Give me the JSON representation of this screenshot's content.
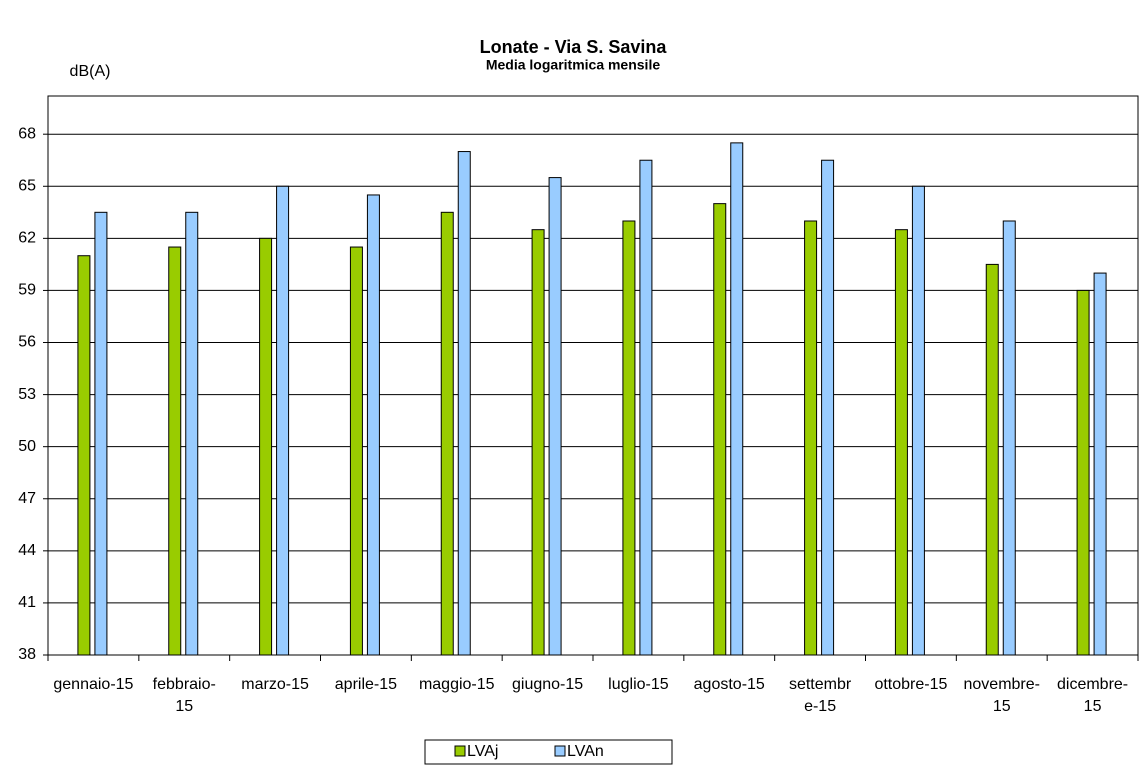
{
  "chart_data": {
    "type": "bar",
    "title": "Lonate - Via S. Savina",
    "subtitle": "Media logaritmica mensile",
    "y_label": "dB(A)",
    "categories": [
      "gennaio-15",
      "febbraio-15",
      "marzo-15",
      "aprile-15",
      "maggio-15",
      "giugno-15",
      "luglio-15",
      "agosto-15",
      "settembre-15",
      "ottobre-15",
      "novembre-15",
      "dicembre-15"
    ],
    "series": [
      {
        "name": "LVAj",
        "color": "#99cc00",
        "values": [
          61,
          61.5,
          62,
          61.5,
          63.5,
          62.5,
          63,
          64,
          63,
          62.5,
          60.5,
          59
        ]
      },
      {
        "name": "LVAn",
        "color": "#99ccff",
        "values": [
          63.5,
          63.5,
          65,
          64.5,
          67,
          65.5,
          66.5,
          67.5,
          66.5,
          65,
          63,
          60
        ]
      }
    ],
    "ylim": [
      38,
      70.2
    ],
    "yticks": [
      38,
      41,
      44,
      47,
      50,
      53,
      56,
      59,
      62,
      65,
      68
    ],
    "grid": true,
    "legend": "bottom"
  }
}
